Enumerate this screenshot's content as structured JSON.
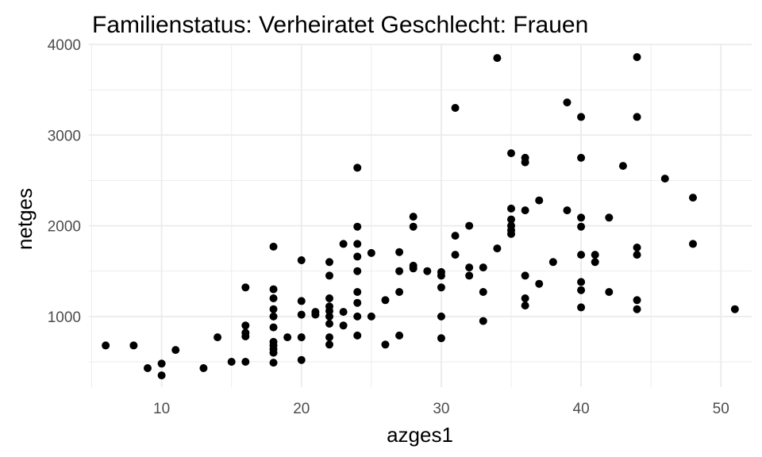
{
  "chart_data": {
    "type": "scatter",
    "title": "Familienstatus: Verheiratet Geschlecht: Frauen",
    "xlabel": "azges1",
    "ylabel": "netges",
    "xlim": [
      4.8,
      52.2
    ],
    "ylim": [
      220,
      4000
    ],
    "xticks": [
      10,
      20,
      30,
      40,
      50
    ],
    "xtick_labels": [
      "10",
      "20",
      "30",
      "40",
      "50"
    ],
    "yticks": [
      1000,
      2000,
      3000,
      4000
    ],
    "ytick_labels": [
      "1000",
      "2000",
      "3000",
      "4000"
    ],
    "grid": true,
    "legend": "none",
    "points": [
      {
        "x": 6,
        "y": 680
      },
      {
        "x": 8,
        "y": 680
      },
      {
        "x": 9,
        "y": 430
      },
      {
        "x": 10,
        "y": 480
      },
      {
        "x": 10,
        "y": 350
      },
      {
        "x": 11,
        "y": 630
      },
      {
        "x": 13,
        "y": 430
      },
      {
        "x": 14,
        "y": 770
      },
      {
        "x": 15,
        "y": 500
      },
      {
        "x": 16,
        "y": 500
      },
      {
        "x": 16,
        "y": 780
      },
      {
        "x": 16,
        "y": 820
      },
      {
        "x": 16,
        "y": 900
      },
      {
        "x": 16,
        "y": 1320
      },
      {
        "x": 18,
        "y": 490
      },
      {
        "x": 18,
        "y": 600
      },
      {
        "x": 18,
        "y": 640
      },
      {
        "x": 18,
        "y": 680
      },
      {
        "x": 18,
        "y": 720
      },
      {
        "x": 18,
        "y": 880
      },
      {
        "x": 18,
        "y": 1000
      },
      {
        "x": 18,
        "y": 1080
      },
      {
        "x": 18,
        "y": 1200
      },
      {
        "x": 18,
        "y": 1300
      },
      {
        "x": 18,
        "y": 1770
      },
      {
        "x": 19,
        "y": 770
      },
      {
        "x": 20,
        "y": 520
      },
      {
        "x": 20,
        "y": 770
      },
      {
        "x": 20,
        "y": 1020
      },
      {
        "x": 20,
        "y": 1170
      },
      {
        "x": 20,
        "y": 1620
      },
      {
        "x": 21,
        "y": 1020
      },
      {
        "x": 21,
        "y": 1050
      },
      {
        "x": 22,
        "y": 690
      },
      {
        "x": 22,
        "y": 770
      },
      {
        "x": 22,
        "y": 920
      },
      {
        "x": 22,
        "y": 1000
      },
      {
        "x": 22,
        "y": 1060
      },
      {
        "x": 22,
        "y": 1110
      },
      {
        "x": 22,
        "y": 1200
      },
      {
        "x": 22,
        "y": 1450
      },
      {
        "x": 22,
        "y": 1600
      },
      {
        "x": 23,
        "y": 900
      },
      {
        "x": 23,
        "y": 1050
      },
      {
        "x": 23,
        "y": 1800
      },
      {
        "x": 24,
        "y": 790
      },
      {
        "x": 24,
        "y": 1000
      },
      {
        "x": 24,
        "y": 1150
      },
      {
        "x": 24,
        "y": 1270
      },
      {
        "x": 24,
        "y": 1500
      },
      {
        "x": 24,
        "y": 1660
      },
      {
        "x": 24,
        "y": 1800
      },
      {
        "x": 24,
        "y": 1990
      },
      {
        "x": 24,
        "y": 2640
      },
      {
        "x": 25,
        "y": 1000
      },
      {
        "x": 25,
        "y": 1700
      },
      {
        "x": 26,
        "y": 690
      },
      {
        "x": 26,
        "y": 1180
      },
      {
        "x": 27,
        "y": 790
      },
      {
        "x": 27,
        "y": 1270
      },
      {
        "x": 27,
        "y": 1500
      },
      {
        "x": 27,
        "y": 1710
      },
      {
        "x": 28,
        "y": 1530
      },
      {
        "x": 28,
        "y": 1560
      },
      {
        "x": 28,
        "y": 1990
      },
      {
        "x": 28,
        "y": 2100
      },
      {
        "x": 29,
        "y": 1500
      },
      {
        "x": 30,
        "y": 760
      },
      {
        "x": 30,
        "y": 1000
      },
      {
        "x": 30,
        "y": 1320
      },
      {
        "x": 30,
        "y": 1450
      },
      {
        "x": 30,
        "y": 1490
      },
      {
        "x": 31,
        "y": 1680
      },
      {
        "x": 31,
        "y": 1890
      },
      {
        "x": 31,
        "y": 3300
      },
      {
        "x": 32,
        "y": 1450
      },
      {
        "x": 32,
        "y": 1540
      },
      {
        "x": 32,
        "y": 2000
      },
      {
        "x": 33,
        "y": 950
      },
      {
        "x": 33,
        "y": 1270
      },
      {
        "x": 33,
        "y": 1540
      },
      {
        "x": 34,
        "y": 1750
      },
      {
        "x": 34,
        "y": 3850
      },
      {
        "x": 35,
        "y": 1910
      },
      {
        "x": 35,
        "y": 1950
      },
      {
        "x": 35,
        "y": 2000
      },
      {
        "x": 35,
        "y": 2070
      },
      {
        "x": 35,
        "y": 2190
      },
      {
        "x": 35,
        "y": 2800
      },
      {
        "x": 36,
        "y": 1120
      },
      {
        "x": 36,
        "y": 1200
      },
      {
        "x": 36,
        "y": 1450
      },
      {
        "x": 36,
        "y": 2170
      },
      {
        "x": 36,
        "y": 2700
      },
      {
        "x": 36,
        "y": 2750
      },
      {
        "x": 37,
        "y": 1360
      },
      {
        "x": 37,
        "y": 2280
      },
      {
        "x": 38,
        "y": 1600
      },
      {
        "x": 39,
        "y": 2170
      },
      {
        "x": 39,
        "y": 3360
      },
      {
        "x": 40,
        "y": 1100
      },
      {
        "x": 40,
        "y": 1290
      },
      {
        "x": 40,
        "y": 1380
      },
      {
        "x": 40,
        "y": 1680
      },
      {
        "x": 40,
        "y": 1990
      },
      {
        "x": 40,
        "y": 2090
      },
      {
        "x": 40,
        "y": 2750
      },
      {
        "x": 40,
        "y": 3200
      },
      {
        "x": 41,
        "y": 1600
      },
      {
        "x": 41,
        "y": 1680
      },
      {
        "x": 42,
        "y": 1270
      },
      {
        "x": 42,
        "y": 2090
      },
      {
        "x": 43,
        "y": 2660
      },
      {
        "x": 44,
        "y": 1080
      },
      {
        "x": 44,
        "y": 1180
      },
      {
        "x": 44,
        "y": 1680
      },
      {
        "x": 44,
        "y": 1760
      },
      {
        "x": 44,
        "y": 3200
      },
      {
        "x": 44,
        "y": 3860
      },
      {
        "x": 46,
        "y": 2520
      },
      {
        "x": 48,
        "y": 1800
      },
      {
        "x": 48,
        "y": 2310
      },
      {
        "x": 51,
        "y": 1080
      }
    ]
  }
}
